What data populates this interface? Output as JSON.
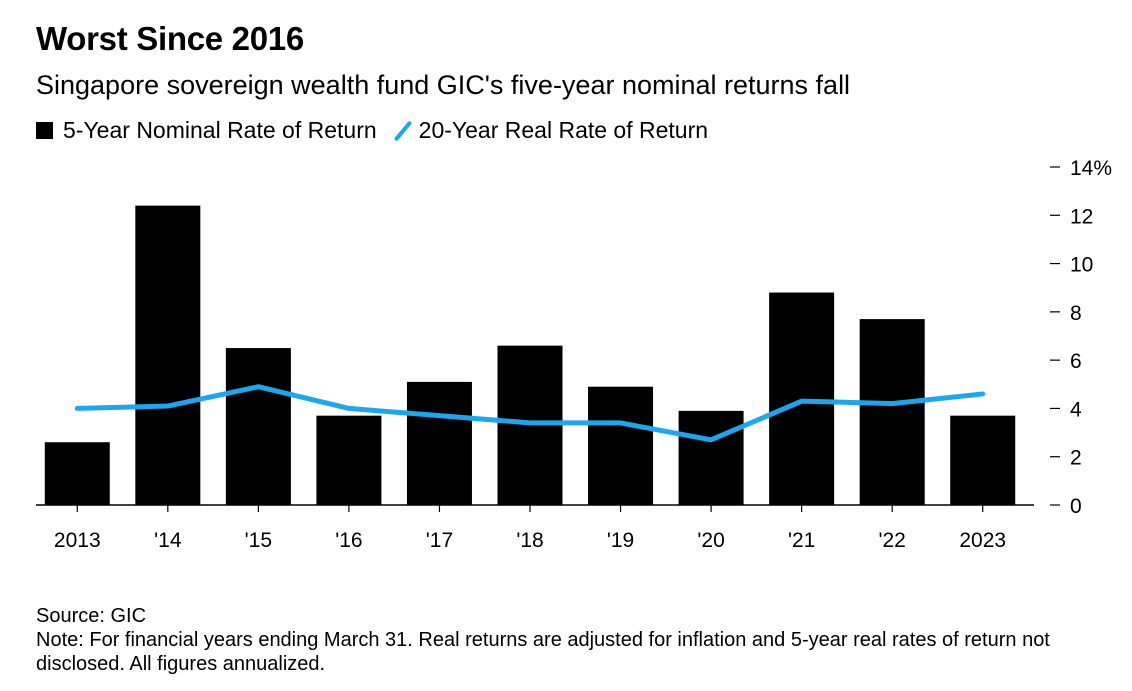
{
  "header": {
    "title": "Worst Since 2016",
    "subtitle": "Singapore sovereign wealth fund GIC's five-year nominal returns fall"
  },
  "legend": {
    "bar_label": "5-Year Nominal Rate of Return",
    "line_label": "20-Year Real Rate of Return"
  },
  "footer": {
    "source": "Source: GIC",
    "note": "Note: For financial years ending March 31. Real returns are adjusted for inflation and 5-year real rates of return not disclosed. All figures annualized."
  },
  "chart_data": {
    "type": "bar",
    "categories": [
      "2013",
      "'14",
      "'15",
      "'16",
      "'17",
      "'18",
      "'19",
      "'20",
      "'21",
      "'22",
      "2023"
    ],
    "series": [
      {
        "name": "5-Year Nominal Rate of Return",
        "type": "bar",
        "color": "#000000",
        "values": [
          2.6,
          12.4,
          6.5,
          3.7,
          5.1,
          6.6,
          4.9,
          3.9,
          8.8,
          7.7,
          3.7
        ]
      },
      {
        "name": "20-Year Real Rate of Return",
        "type": "line",
        "color": "#1ba7f0",
        "values": [
          4.0,
          4.1,
          4.9,
          4.0,
          3.7,
          3.4,
          3.4,
          2.7,
          4.3,
          4.2,
          4.6
        ]
      }
    ],
    "ylim": [
      0,
      14
    ],
    "yticks": [
      0,
      2,
      4,
      6,
      8,
      10,
      12,
      14
    ],
    "ytick_labels": [
      "0",
      "2",
      "4",
      "6",
      "8",
      "10",
      "12",
      "14%"
    ],
    "y_axis_position": "right",
    "grid": false,
    "legend_position": "top-left"
  }
}
